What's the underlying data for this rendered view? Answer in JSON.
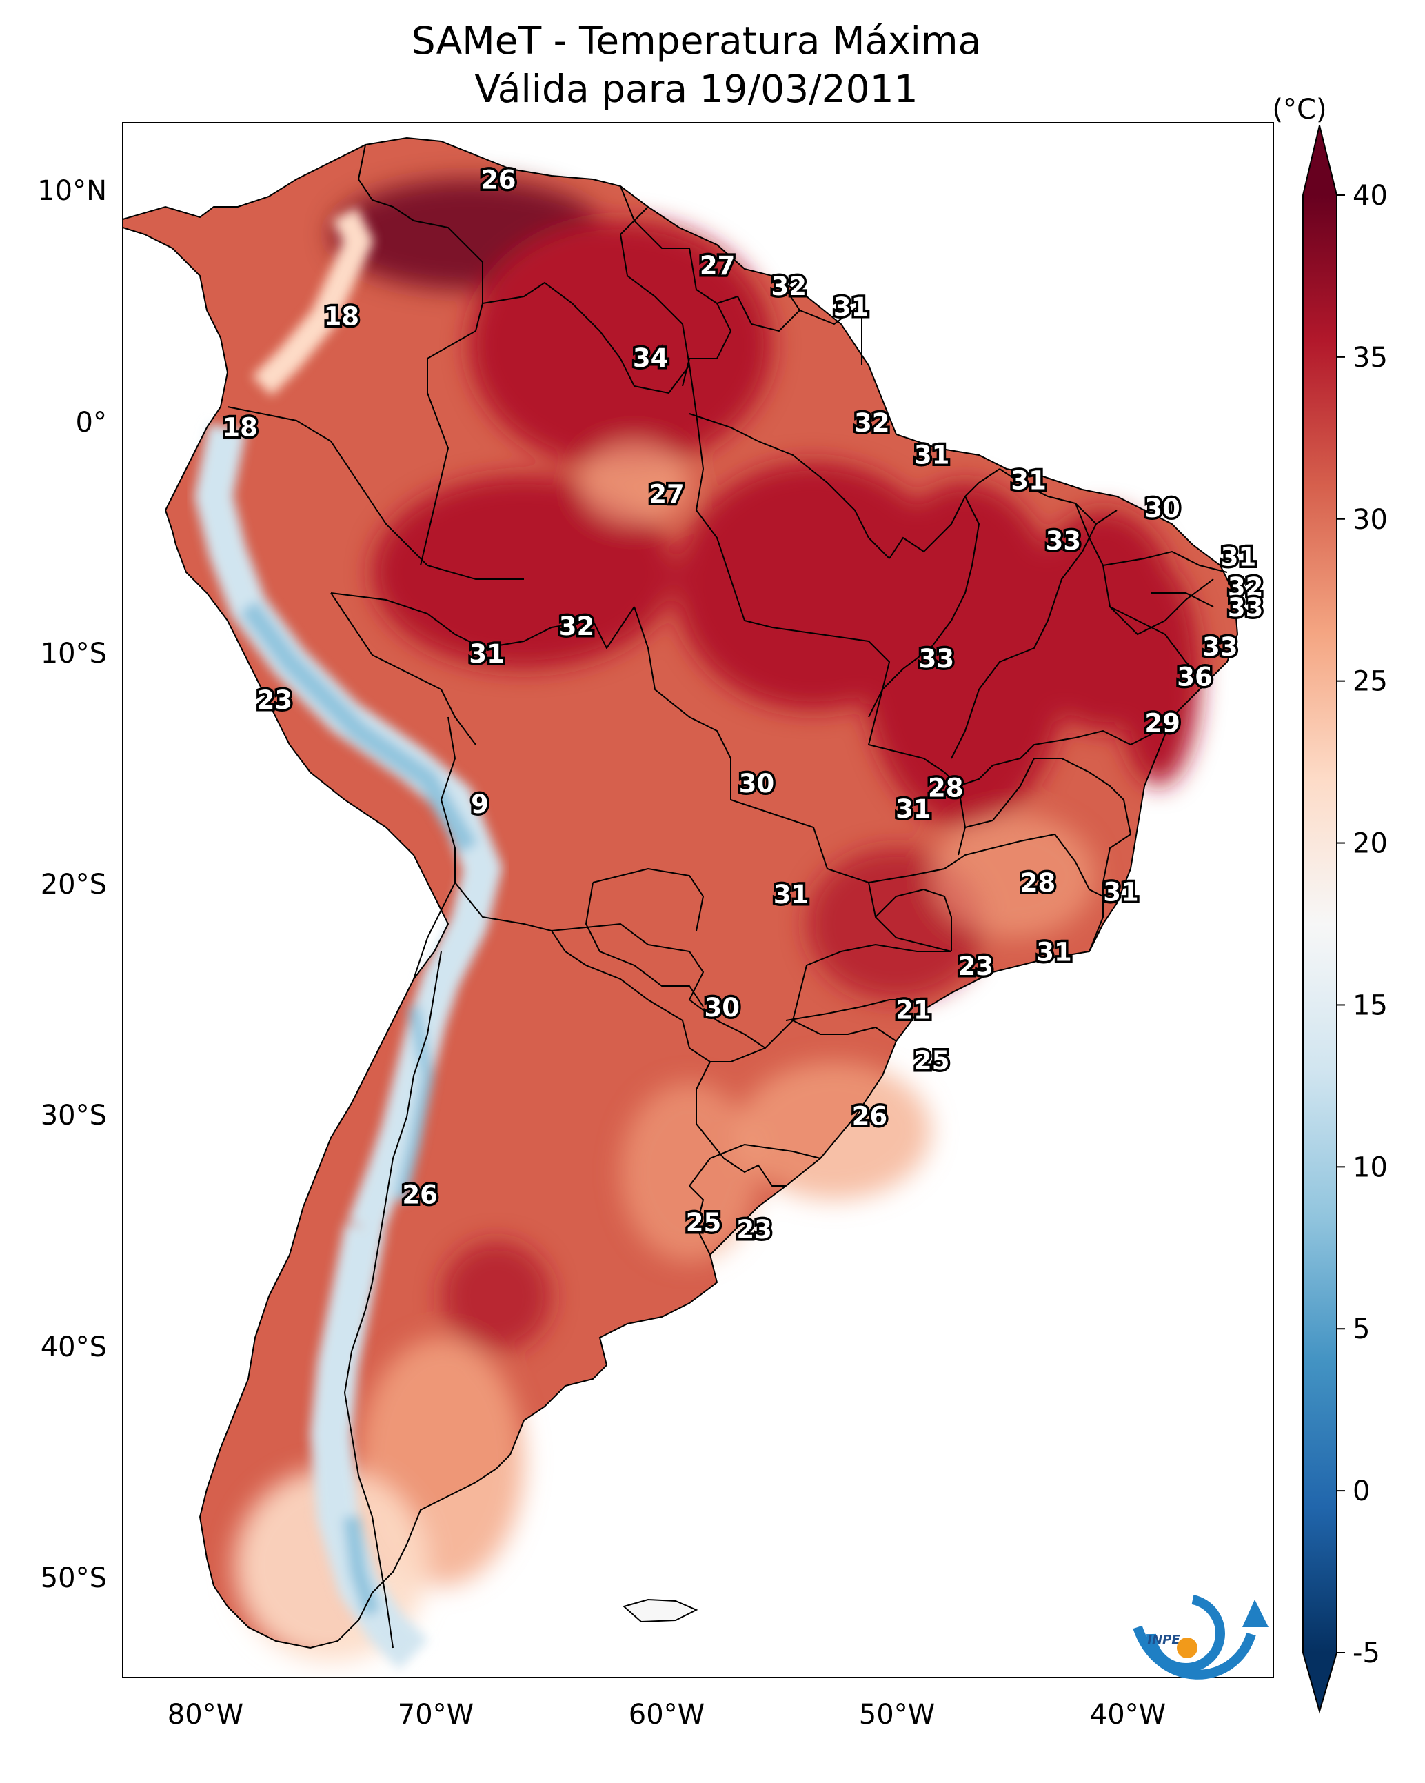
{
  "title": {
    "line1": "SAMeT - Temperatura Máxima",
    "line2": "Válida para 19/03/2011"
  },
  "colorbar": {
    "unit": "(°C)",
    "min": -5,
    "max": 40,
    "ticks": [
      "40",
      "35",
      "30",
      "25",
      "20",
      "15",
      "10",
      "5",
      "0",
      "-5"
    ],
    "colors": {
      "dark_red": "#67001f",
      "red": "#b2182b",
      "light_red": "#d6604d",
      "salmon": "#f4a582",
      "pale": "#fddbc7",
      "white": "#f7f7f7",
      "pale_blue": "#d1e5f0",
      "light_blue": "#92c5de",
      "blue": "#4393c3",
      "mid_blue": "#2166ac",
      "dark_blue": "#053061"
    }
  },
  "axes": {
    "lat_labels": [
      "10°N",
      "0°",
      "10°S",
      "20°S",
      "30°S",
      "40°S",
      "50°S"
    ],
    "lon_labels": [
      "80°W",
      "70°W",
      "60°W",
      "50°W",
      "40°W"
    ]
  },
  "city_labels": [
    {
      "value": "26",
      "lon": -67.3,
      "lat": 10.5
    },
    {
      "value": "27",
      "lon": -57.8,
      "lat": 6.8
    },
    {
      "value": "32",
      "lon": -54.7,
      "lat": 5.9
    },
    {
      "value": "31",
      "lon": -52.0,
      "lat": 5.0
    },
    {
      "value": "18",
      "lon": -74.1,
      "lat": 4.6
    },
    {
      "value": "34",
      "lon": -60.7,
      "lat": 2.8
    },
    {
      "value": "18",
      "lon": -78.5,
      "lat": -0.2
    },
    {
      "value": "32",
      "lon": -51.1,
      "lat": 0.0
    },
    {
      "value": "31",
      "lon": -48.5,
      "lat": -1.4
    },
    {
      "value": "31",
      "lon": -44.3,
      "lat": -2.5
    },
    {
      "value": "27",
      "lon": -60.0,
      "lat": -3.1
    },
    {
      "value": "30",
      "lon": -38.5,
      "lat": -3.7
    },
    {
      "value": "33",
      "lon": -42.8,
      "lat": -5.1
    },
    {
      "value": "31",
      "lon": -35.2,
      "lat": -5.8
    },
    {
      "value": "32",
      "lon": -34.9,
      "lat": -7.1
    },
    {
      "value": "33",
      "lon": -34.9,
      "lat": -8.0
    },
    {
      "value": "32",
      "lon": -63.9,
      "lat": -8.8
    },
    {
      "value": "33",
      "lon": -36.0,
      "lat": -9.7
    },
    {
      "value": "31",
      "lon": -67.8,
      "lat": -10.0
    },
    {
      "value": "33",
      "lon": -48.3,
      "lat": -10.2
    },
    {
      "value": "36",
      "lon": -37.1,
      "lat": -11.0
    },
    {
      "value": "23",
      "lon": -77.0,
      "lat": -12.0
    },
    {
      "value": "29",
      "lon": -38.5,
      "lat": -13.0
    },
    {
      "value": "30",
      "lon": -56.1,
      "lat": -15.6
    },
    {
      "value": "28",
      "lon": -47.9,
      "lat": -15.8
    },
    {
      "value": "9",
      "lon": -68.1,
      "lat": -16.5
    },
    {
      "value": "31",
      "lon": -49.3,
      "lat": -16.7
    },
    {
      "value": "28",
      "lon": -43.9,
      "lat": -19.9
    },
    {
      "value": "31",
      "lon": -40.3,
      "lat": -20.3
    },
    {
      "value": "31",
      "lon": -54.6,
      "lat": -20.4
    },
    {
      "value": "31",
      "lon": -43.2,
      "lat": -22.9
    },
    {
      "value": "23",
      "lon": -46.6,
      "lat": -23.5
    },
    {
      "value": "21",
      "lon": -49.3,
      "lat": -25.4
    },
    {
      "value": "30",
      "lon": -57.6,
      "lat": -25.3
    },
    {
      "value": "25",
      "lon": -48.5,
      "lat": -27.6
    },
    {
      "value": "26",
      "lon": -51.2,
      "lat": -30.0
    },
    {
      "value": "26",
      "lon": -70.7,
      "lat": -33.4
    },
    {
      "value": "25",
      "lon": -58.4,
      "lat": -34.6
    },
    {
      "value": "23",
      "lon": -56.2,
      "lat": -34.9
    }
  ],
  "logo": {
    "text": "INPE"
  }
}
